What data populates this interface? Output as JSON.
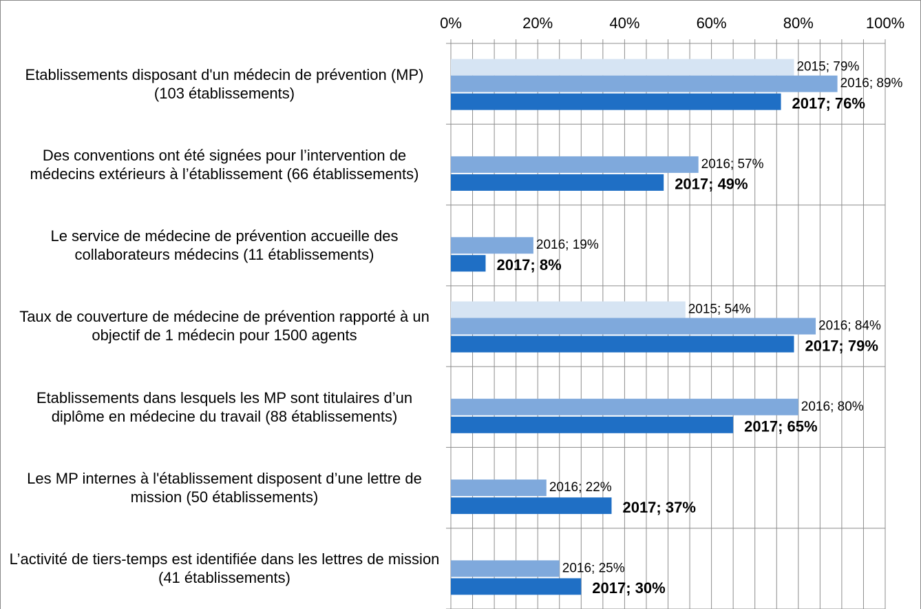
{
  "chart_data": {
    "type": "barh",
    "categories": [
      "Etablissements disposant d'un médecin de prévention (MP) (103 établissements)",
      "Des conventions ont été signées pour l’intervention de médecins extérieurs à l’établissement (66 établissements)",
      "Le service de médecine de prévention accueille des collaborateurs médecins (11 établissements)",
      "Taux de couverture de médecine de prévention rapporté à un objectif de 1 médecin pour 1500 agents",
      "Etablissements dans lesquels les MP sont titulaires d’un diplôme en médecine du travail (88 établissements)",
      "Les MP internes à l'établissement disposent d’une lettre de mission (50 établissements)",
      "L’activité de tiers-temps est identifiée dans les lettres de mission (41 établissements)"
    ],
    "series": [
      {
        "name": "2015",
        "color": "#d6e4f3",
        "values": [
          79,
          null,
          null,
          54,
          null,
          null,
          null
        ],
        "value_labels": [
          "2015; 79%",
          null,
          null,
          "2015; 54%",
          null,
          null,
          null
        ]
      },
      {
        "name": "2016",
        "color": "#7fa9dc",
        "values": [
          89,
          57,
          19,
          84,
          80,
          22,
          25
        ],
        "value_labels": [
          "2016; 89%",
          "2016; 57%",
          "2016; 19%",
          "2016; 84%",
          "2016; 80%",
          "2016; 22%",
          "2016; 25%"
        ]
      },
      {
        "name": "2017",
        "color": "#1f6fc5",
        "values": [
          76,
          49,
          8,
          79,
          65,
          37,
          30
        ],
        "value_labels": [
          "2017; 76%",
          "2017; 49%",
          "2017; 8%",
          "2017; 79%",
          "2017; 65%",
          "2017; 37%",
          "2017; 30%"
        ]
      }
    ],
    "xlim": [
      0,
      100
    ],
    "xticks": [
      {
        "value": 0,
        "label": "0%"
      },
      {
        "value": 20,
        "label": "20%"
      },
      {
        "value": 40,
        "label": "40%"
      },
      {
        "value": 60,
        "label": "60%"
      },
      {
        "value": 80,
        "label": "80%"
      },
      {
        "value": 100,
        "label": "100%"
      }
    ],
    "minor_xticks": [
      5,
      10,
      15,
      25,
      30,
      35,
      45,
      50,
      55,
      65,
      70,
      75,
      85,
      90,
      95
    ],
    "grid": true
  }
}
